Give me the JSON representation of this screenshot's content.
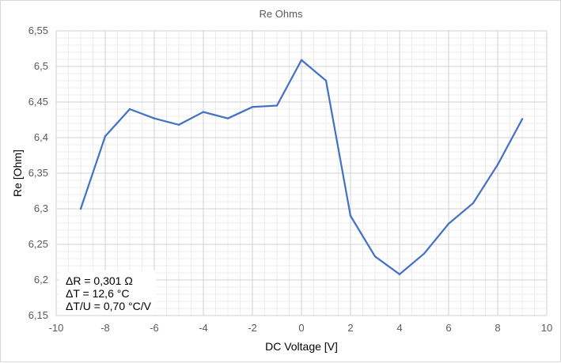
{
  "chart_data": {
    "type": "line",
    "title": "Re Ohms",
    "xlabel": "DC Voltage [V]",
    "ylabel": "Re [Ohm]",
    "xlim": [
      -10,
      10
    ],
    "ylim": [
      6.15,
      6.55
    ],
    "x_ticks": [
      "-10",
      "-8",
      "-6",
      "-4",
      "-2",
      "0",
      "2",
      "4",
      "6",
      "8",
      "10"
    ],
    "y_ticks": [
      "6,15",
      "6,2",
      "6,25",
      "6,3",
      "6,35",
      "6,4",
      "6,45",
      "6,5",
      "6,55"
    ],
    "grid": true,
    "line_color": "#4472c4",
    "series": [
      {
        "x": [
          -9,
          -8,
          -7,
          -6,
          -5,
          -4,
          -3,
          -2,
          -1,
          0,
          1,
          2,
          3,
          4,
          5,
          6,
          7,
          8,
          9
        ],
        "values": [
          6.3,
          6.402,
          6.44,
          6.427,
          6.418,
          6.436,
          6.427,
          6.443,
          6.445,
          6.509,
          6.48,
          6.29,
          6.233,
          6.208,
          6.237,
          6.279,
          6.308,
          6.362,
          6.426
        ]
      }
    ],
    "annotations": [
      "ΔR = 0,301 Ω",
      "ΔT = 12,6 °C",
      "ΔT/U = 0,70 °C/V"
    ]
  }
}
